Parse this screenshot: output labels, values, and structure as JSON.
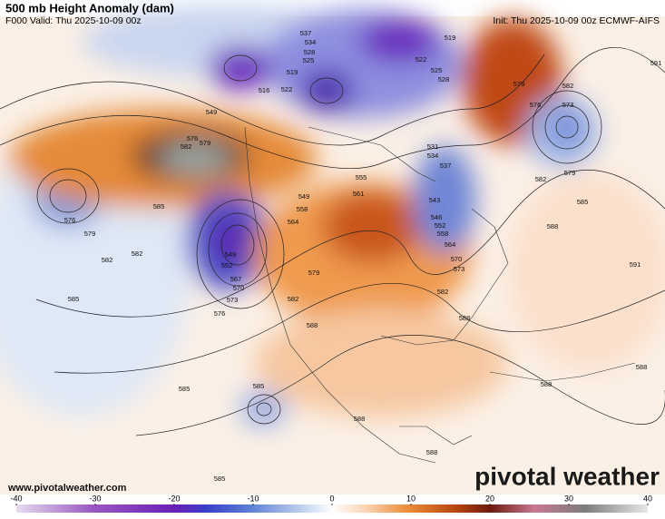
{
  "header": {
    "title": "500 mb Height Anomaly (dam)",
    "valid": "F000 Valid: Thu 2025-10-09 00z",
    "init": "Init: Thu 2025-10-09 00z ECMWF-AIFS"
  },
  "footer": {
    "website": "www.pivotalweather.com",
    "logo": "pivotal weather"
  },
  "colorbar": {
    "range": [
      -40,
      40
    ],
    "ticks": [
      -40,
      -30,
      -20,
      -10,
      0,
      10,
      20,
      30,
      40
    ]
  },
  "contour_labels": [
    537,
    534,
    528,
    525,
    519,
    522,
    516,
    519,
    522,
    525,
    528,
    579,
    582,
    576,
    573,
    579,
    582,
    585,
    588,
    591,
    591,
    549,
    576,
    579,
    582,
    585,
    576,
    579,
    582,
    582,
    585,
    585,
    585,
    585,
    549,
    558,
    564,
    555,
    561,
    543,
    546,
    552,
    558,
    564,
    570,
    573,
    582,
    588,
    549,
    552,
    567,
    570,
    573,
    576,
    579,
    582,
    588,
    588,
    588,
    588,
    588,
    531,
    534,
    537
  ]
}
